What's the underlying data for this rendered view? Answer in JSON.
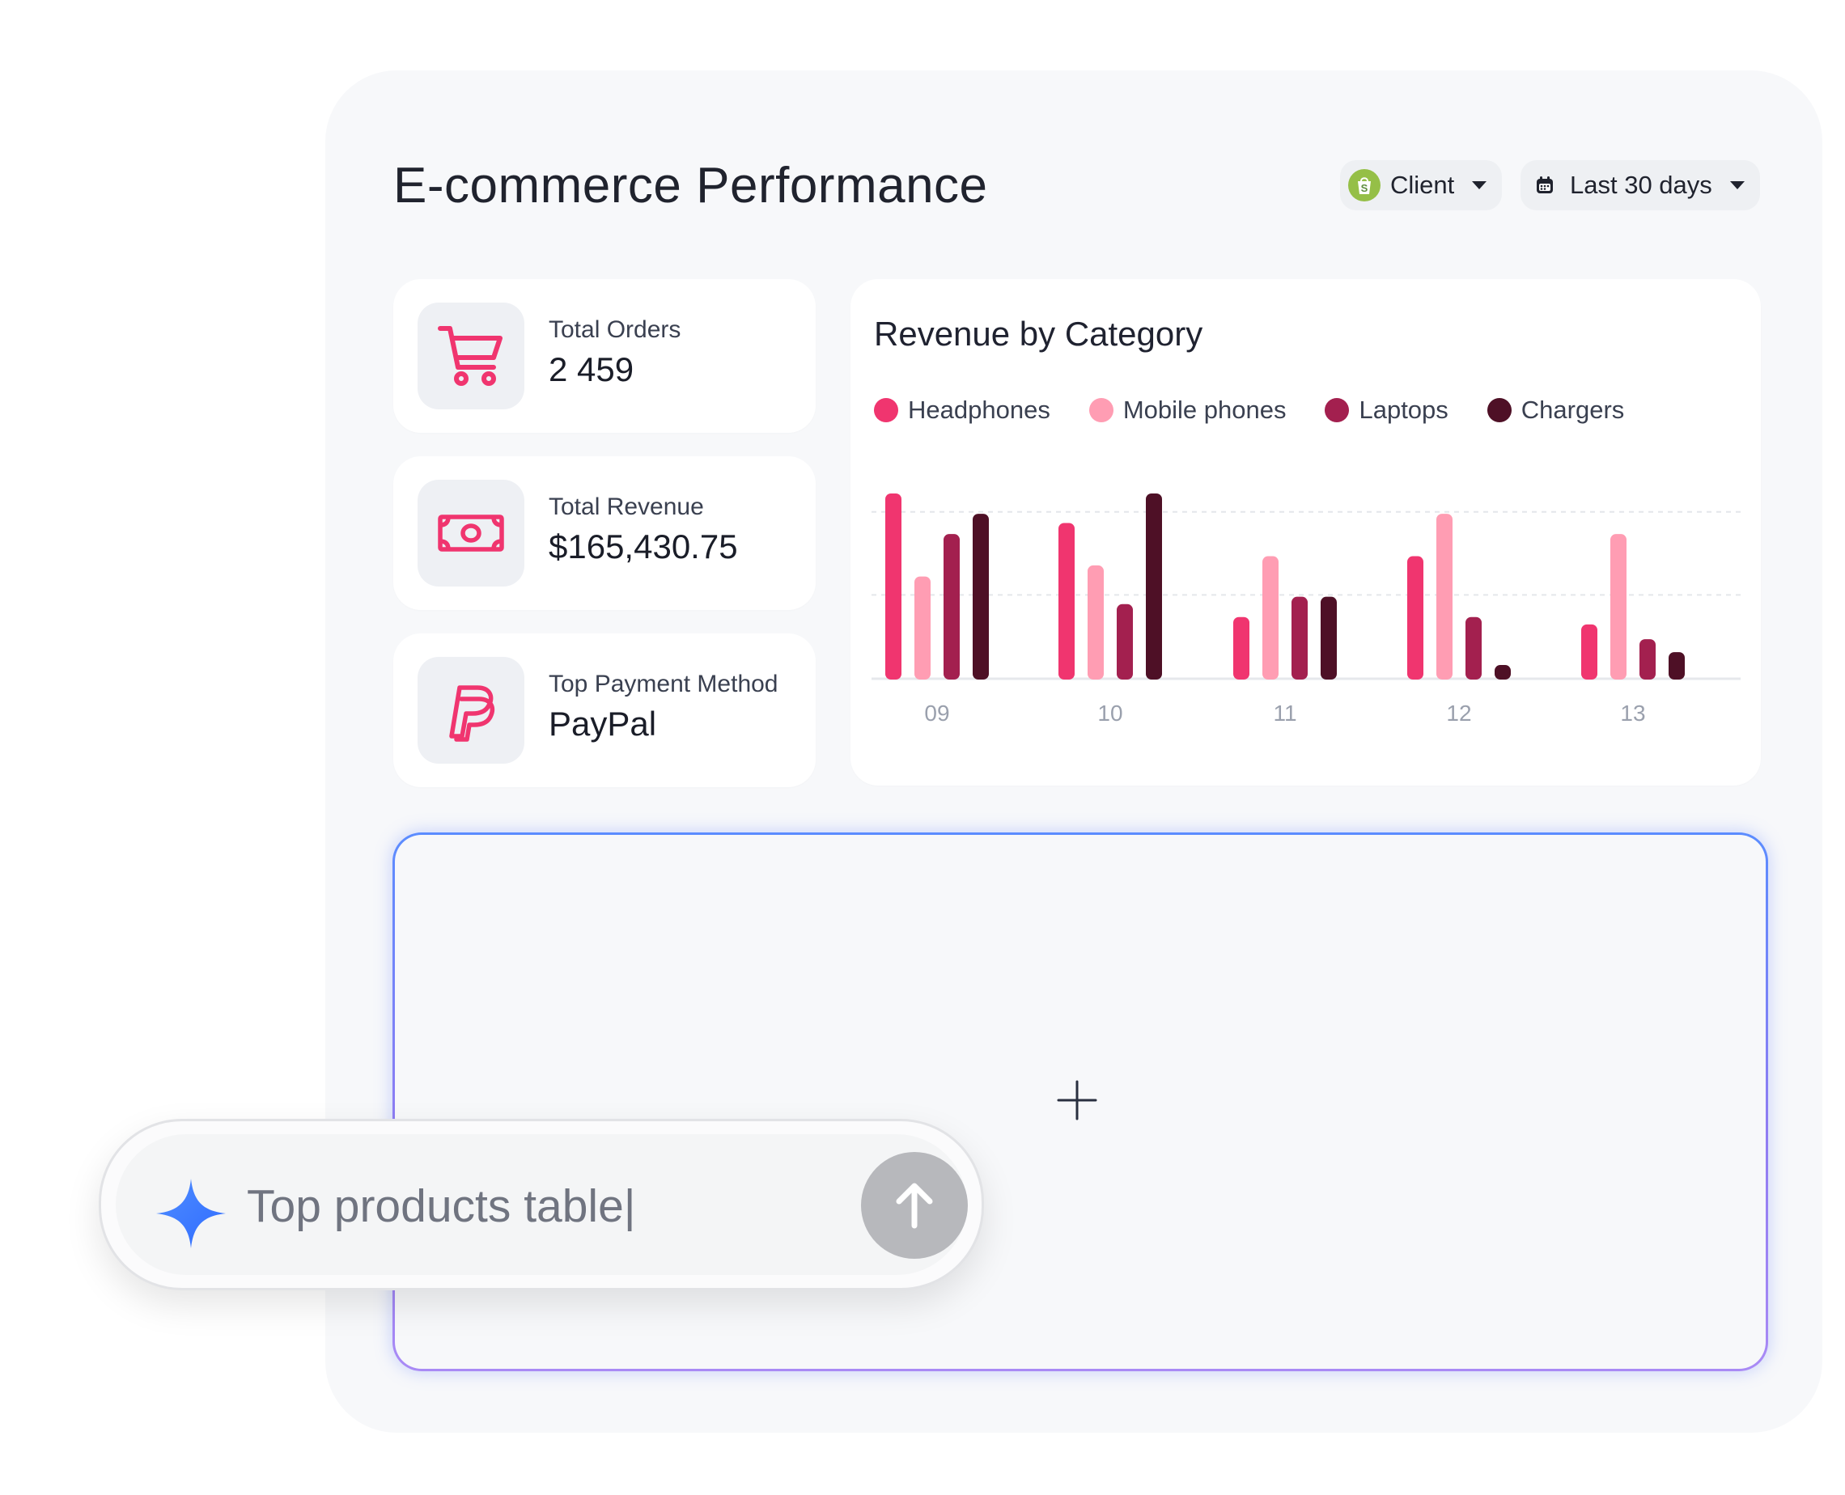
{
  "header": {
    "title": "E-commerce Performance",
    "client_label": "Client",
    "date_range_label": "Last 30 days"
  },
  "kpis": [
    {
      "label": "Total Orders",
      "value": "2 459",
      "icon": "cart-icon"
    },
    {
      "label": "Total Revenue",
      "value": "$165,430.75",
      "icon": "cash-icon"
    },
    {
      "label": "Top Payment Method",
      "value": "PayPal",
      "icon": "paypal-icon"
    }
  ],
  "colors": {
    "headphones": "#f0356f",
    "mobile_phones": "#ff9db3",
    "laptops": "#a3204f",
    "chargers": "#4e1026",
    "accent": "#f0356f"
  },
  "chart_data": {
    "type": "bar",
    "title": "Revenue by Category",
    "categories": [
      "09",
      "10",
      "11",
      "12",
      "13"
    ],
    "series": [
      {
        "name": "Headphones",
        "values": [
          100,
          84,
          33,
          66,
          29
        ]
      },
      {
        "name": "Mobile phones",
        "values": [
          55,
          61,
          66,
          89,
          78
        ]
      },
      {
        "name": "Laptops",
        "values": [
          78,
          40,
          44,
          33,
          21
        ]
      },
      {
        "name": "Chargers",
        "values": [
          89,
          100,
          44,
          7,
          14
        ]
      }
    ],
    "ylim": [
      0,
      100
    ],
    "grid": true,
    "legend_position": "top-left"
  },
  "prompt": {
    "text": "Top products table|"
  }
}
